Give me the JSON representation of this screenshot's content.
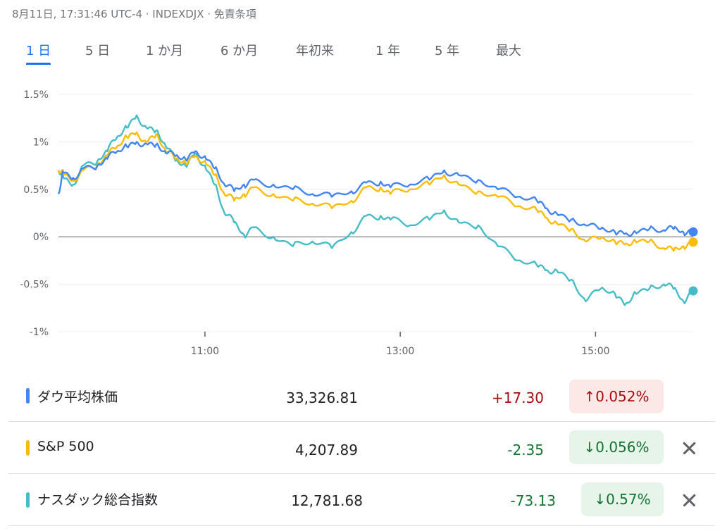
{
  "header": {
    "meta": "8月11日, 17:31:46 UTC-4 · INDEXDJX · 免責条項"
  },
  "tabs": [
    {
      "label": "1 日",
      "active": true
    },
    {
      "label": "5 日",
      "active": false
    },
    {
      "label": "1 か月",
      "active": false
    },
    {
      "label": "6 か月",
      "active": false
    },
    {
      "label": "年初来",
      "active": false
    },
    {
      "label": "1 年",
      "active": false
    },
    {
      "label": "5 年",
      "active": false
    },
    {
      "label": "最大",
      "active": false
    }
  ],
  "chart_data": {
    "type": "line",
    "x_unit": "hours",
    "x_range": [
      9.5,
      16.0
    ],
    "ylim": [
      -1,
      1.5
    ],
    "y_ticks": [
      {
        "value": 1.5,
        "label": "1.5%"
      },
      {
        "value": 1.0,
        "label": "1%"
      },
      {
        "value": 0.5,
        "label": "0.5%"
      },
      {
        "value": 0.0,
        "label": "0%"
      },
      {
        "value": -0.5,
        "label": "-0.5%"
      },
      {
        "value": -1.0,
        "label": "-1%"
      }
    ],
    "x_ticks": [
      {
        "value": 11,
        "label": "11:00"
      },
      {
        "value": 13,
        "label": "13:00"
      },
      {
        "value": 15,
        "label": "15:00"
      }
    ],
    "baseline": 0,
    "grid": true,
    "series": [
      {
        "name": "ダウ平均株価",
        "color": "#4285f4",
        "points": [
          [
            9.5,
            0.45
          ],
          [
            9.55,
            0.68
          ],
          [
            9.65,
            0.62
          ],
          [
            9.75,
            0.72
          ],
          [
            9.9,
            0.75
          ],
          [
            10.0,
            0.82
          ],
          [
            10.1,
            0.9
          ],
          [
            10.2,
            0.95
          ],
          [
            10.3,
            1.0
          ],
          [
            10.4,
            0.98
          ],
          [
            10.5,
            0.97
          ],
          [
            10.6,
            0.88
          ],
          [
            10.7,
            0.85
          ],
          [
            10.8,
            0.82
          ],
          [
            10.9,
            0.9
          ],
          [
            11.0,
            0.85
          ],
          [
            11.1,
            0.72
          ],
          [
            11.2,
            0.55
          ],
          [
            11.3,
            0.48
          ],
          [
            11.4,
            0.55
          ],
          [
            11.5,
            0.6
          ],
          [
            11.7,
            0.55
          ],
          [
            11.9,
            0.5
          ],
          [
            12.1,
            0.45
          ],
          [
            12.3,
            0.42
          ],
          [
            12.5,
            0.48
          ],
          [
            12.65,
            0.57
          ],
          [
            12.8,
            0.58
          ],
          [
            12.9,
            0.52
          ],
          [
            13.1,
            0.55
          ],
          [
            13.3,
            0.6
          ],
          [
            13.45,
            0.7
          ],
          [
            13.6,
            0.65
          ],
          [
            13.8,
            0.6
          ],
          [
            14.0,
            0.5
          ],
          [
            14.2,
            0.42
          ],
          [
            14.4,
            0.38
          ],
          [
            14.5,
            0.3
          ],
          [
            14.6,
            0.25
          ],
          [
            14.75,
            0.18
          ],
          [
            14.9,
            0.12
          ],
          [
            15.05,
            0.08
          ],
          [
            15.2,
            0.05
          ],
          [
            15.3,
            0.03
          ],
          [
            15.4,
            0.06
          ],
          [
            15.55,
            0.08
          ],
          [
            15.7,
            0.07
          ],
          [
            15.8,
            0.08
          ],
          [
            15.9,
            0.05
          ],
          [
            16.0,
            0.052
          ]
        ]
      },
      {
        "name": "S&P 500",
        "color": "#fbbc04",
        "points": [
          [
            9.5,
            0.7
          ],
          [
            9.55,
            0.66
          ],
          [
            9.65,
            0.6
          ],
          [
            9.75,
            0.7
          ],
          [
            9.9,
            0.76
          ],
          [
            10.0,
            0.85
          ],
          [
            10.1,
            0.95
          ],
          [
            10.2,
            1.05
          ],
          [
            10.3,
            1.1
          ],
          [
            10.4,
            1.0
          ],
          [
            10.5,
            1.08
          ],
          [
            10.6,
            0.9
          ],
          [
            10.7,
            0.82
          ],
          [
            10.8,
            0.78
          ],
          [
            10.9,
            0.85
          ],
          [
            11.0,
            0.8
          ],
          [
            11.1,
            0.65
          ],
          [
            11.2,
            0.45
          ],
          [
            11.3,
            0.38
          ],
          [
            11.4,
            0.45
          ],
          [
            11.5,
            0.52
          ],
          [
            11.7,
            0.45
          ],
          [
            11.9,
            0.38
          ],
          [
            12.1,
            0.35
          ],
          [
            12.3,
            0.3
          ],
          [
            12.5,
            0.38
          ],
          [
            12.65,
            0.52
          ],
          [
            12.8,
            0.52
          ],
          [
            12.9,
            0.45
          ],
          [
            13.1,
            0.5
          ],
          [
            13.3,
            0.55
          ],
          [
            13.45,
            0.65
          ],
          [
            13.6,
            0.55
          ],
          [
            13.8,
            0.48
          ],
          [
            14.0,
            0.42
          ],
          [
            14.2,
            0.32
          ],
          [
            14.4,
            0.28
          ],
          [
            14.5,
            0.2
          ],
          [
            14.6,
            0.15
          ],
          [
            14.75,
            0.08
          ],
          [
            14.9,
            -0.05
          ],
          [
            15.05,
            -0.02
          ],
          [
            15.2,
            -0.05
          ],
          [
            15.3,
            -0.08
          ],
          [
            15.4,
            -0.03
          ],
          [
            15.55,
            -0.05
          ],
          [
            15.7,
            -0.12
          ],
          [
            15.8,
            -0.15
          ],
          [
            15.9,
            -0.1
          ],
          [
            16.0,
            -0.056
          ]
        ]
      },
      {
        "name": "ナスダック総合指数",
        "color": "#46bdc6",
        "points": [
          [
            9.5,
            0.7
          ],
          [
            9.55,
            0.62
          ],
          [
            9.65,
            0.55
          ],
          [
            9.75,
            0.75
          ],
          [
            9.9,
            0.8
          ],
          [
            10.0,
            0.9
          ],
          [
            10.1,
            1.05
          ],
          [
            10.2,
            1.15
          ],
          [
            10.3,
            1.28
          ],
          [
            10.4,
            1.15
          ],
          [
            10.5,
            1.12
          ],
          [
            10.6,
            0.95
          ],
          [
            10.7,
            0.8
          ],
          [
            10.8,
            0.75
          ],
          [
            10.9,
            0.88
          ],
          [
            11.0,
            0.75
          ],
          [
            11.1,
            0.55
          ],
          [
            11.2,
            0.25
          ],
          [
            11.3,
            0.15
          ],
          [
            11.4,
            0.02
          ],
          [
            11.5,
            0.1
          ],
          [
            11.7,
            0.0
          ],
          [
            11.9,
            -0.1
          ],
          [
            12.1,
            -0.05
          ],
          [
            12.3,
            -0.12
          ],
          [
            12.5,
            0.05
          ],
          [
            12.65,
            0.22
          ],
          [
            12.8,
            0.22
          ],
          [
            12.9,
            0.18
          ],
          [
            13.1,
            0.12
          ],
          [
            13.3,
            0.18
          ],
          [
            13.45,
            0.28
          ],
          [
            13.6,
            0.15
          ],
          [
            13.8,
            0.12
          ],
          [
            14.0,
            -0.1
          ],
          [
            14.2,
            -0.25
          ],
          [
            14.4,
            -0.3
          ],
          [
            14.5,
            -0.35
          ],
          [
            14.6,
            -0.35
          ],
          [
            14.75,
            -0.45
          ],
          [
            14.9,
            -0.68
          ],
          [
            15.05,
            -0.55
          ],
          [
            15.2,
            -0.6
          ],
          [
            15.3,
            -0.72
          ],
          [
            15.4,
            -0.58
          ],
          [
            15.55,
            -0.55
          ],
          [
            15.7,
            -0.5
          ],
          [
            15.8,
            -0.55
          ],
          [
            15.9,
            -0.68
          ],
          [
            16.0,
            -0.57
          ]
        ]
      }
    ]
  },
  "summary": [
    {
      "name": "ダウ平均株価",
      "color": "#4285f4",
      "value": "33,326.81",
      "change": "+17.30",
      "change_color": "#a50e0e",
      "percent": "↑0.052%",
      "badge_bg": "#fce8e6",
      "badge_fg": "#a50e0e",
      "removable": false
    },
    {
      "name": "S&P 500",
      "color": "#fbbc04",
      "value": "4,207.89",
      "change": "-2.35",
      "change_color": "#137333",
      "percent": "↓0.056%",
      "badge_bg": "#e6f4ea",
      "badge_fg": "#137333",
      "removable": true
    },
    {
      "name": "ナスダック総合指数",
      "color": "#46bdc6",
      "value": "12,781.68",
      "change": "-73.13",
      "change_color": "#137333",
      "percent": "↓0.57%",
      "badge_bg": "#e6f4ea",
      "badge_fg": "#137333",
      "removable": true
    }
  ]
}
